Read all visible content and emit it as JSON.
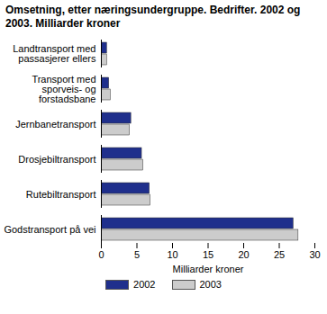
{
  "chart_data": {
    "type": "bar",
    "orientation": "horizontal",
    "title": "Omsetning, etter næringsundergruppe. Bedrifter. 2002 og 2003. Milliarder kroner",
    "x_label": "Milliarder kroner",
    "categories": [
      "Landtransport med passasjerer ellers",
      "Transport med sporveis- og forstadsbane",
      "Jernbanetransport",
      "Drosjebiltransport",
      "Rutebiltransport",
      "Godstransport på vei"
    ],
    "series": [
      {
        "name": "2002",
        "color": "#1f2f8c",
        "values": [
          0.8,
          1.1,
          4.2,
          5.7,
          6.8,
          27.0
        ]
      },
      {
        "name": "2003",
        "color": "#cccccc",
        "values": [
          0.8,
          1.3,
          4.0,
          5.9,
          6.9,
          27.7
        ]
      }
    ],
    "xlim": [
      0,
      30
    ],
    "xticks": [
      0,
      5,
      10,
      15,
      20,
      25,
      30
    ],
    "grid": false,
    "legend": "bottom"
  }
}
